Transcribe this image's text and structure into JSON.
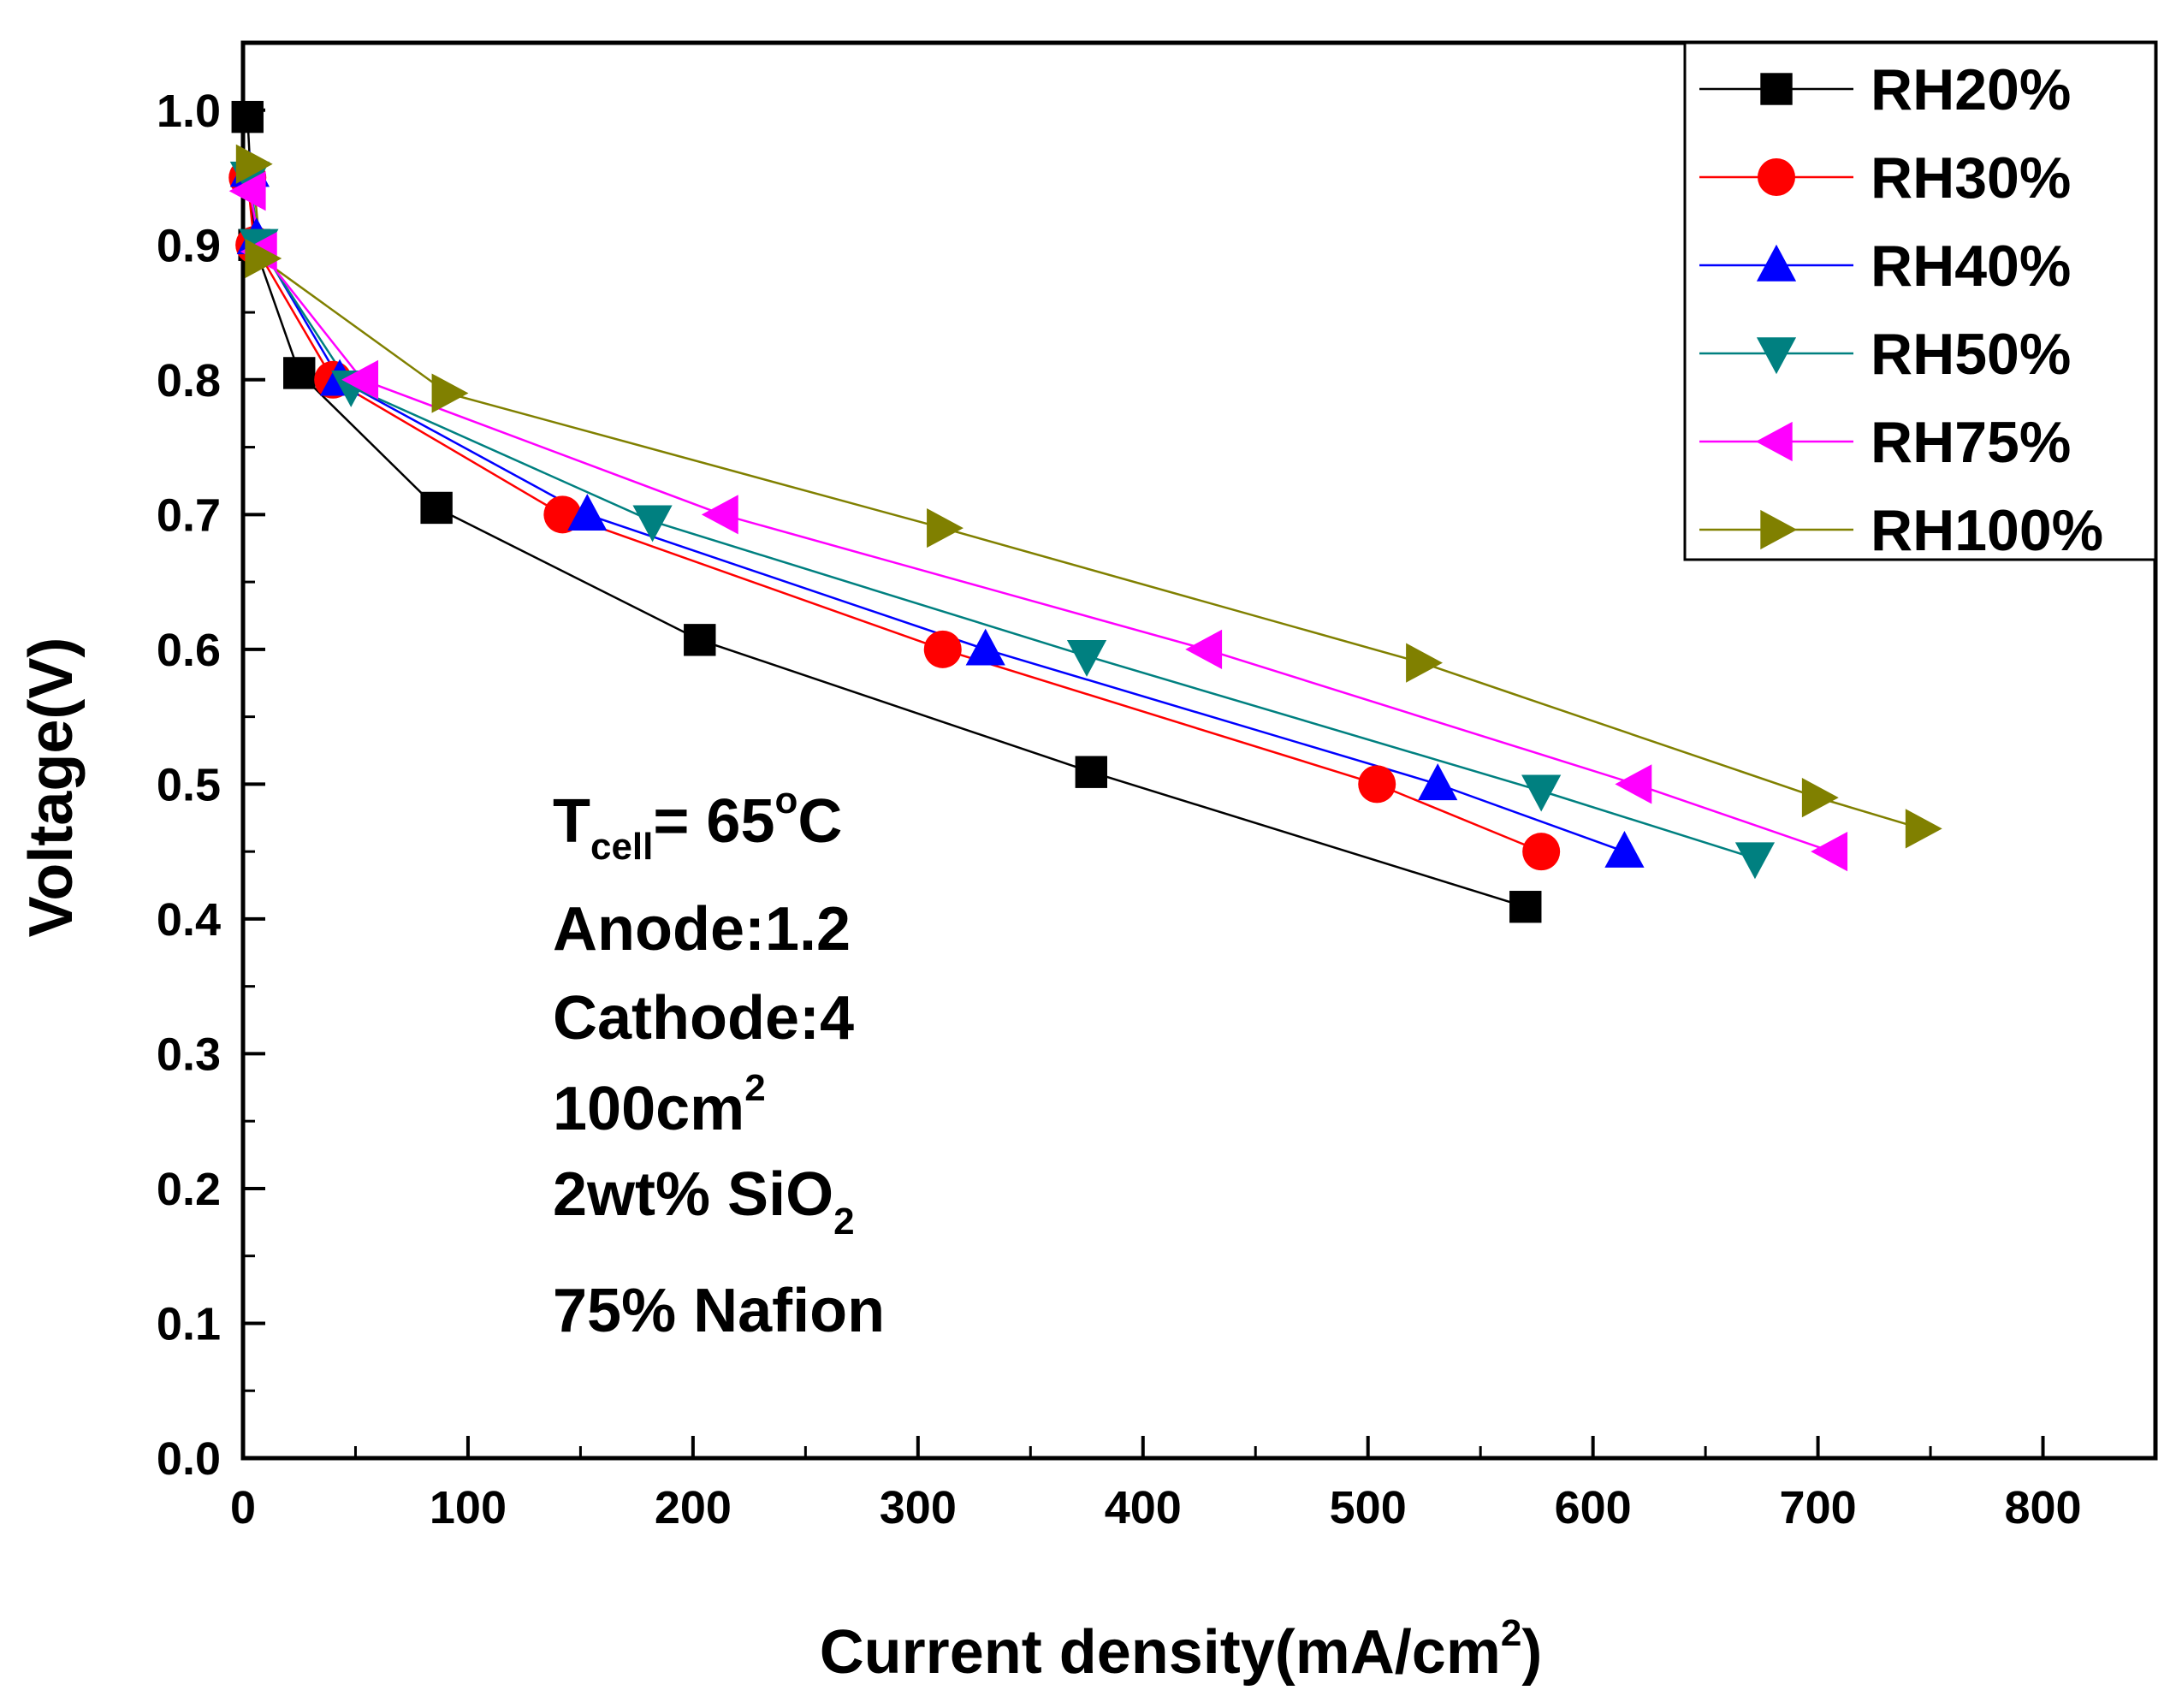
{
  "chart_data": {
    "type": "line",
    "title": "",
    "xlabel": "Current density(mA/cm",
    "xlabel_sup": "2",
    "xlabel_close": ")",
    "ylabel": "Voltage(V)",
    "xlim": [
      0,
      850
    ],
    "ylim": [
      0,
      1.05
    ],
    "x_ticks": [
      0,
      100,
      200,
      300,
      400,
      500,
      600,
      700,
      800
    ],
    "x_tick_labels": [
      "0",
      "100",
      "200",
      "300",
      "400",
      "500",
      "600",
      "700",
      "800"
    ],
    "y_ticks": [
      0.0,
      0.1,
      0.2,
      0.3,
      0.4,
      0.5,
      0.6,
      0.7,
      0.8,
      0.9,
      1.0
    ],
    "y_tick_labels": [
      "0.0",
      "0.1",
      "0.2",
      "0.3",
      "0.4",
      "0.5",
      "0.6",
      "0.7",
      "0.8",
      "0.9",
      "1.0"
    ],
    "grid": false,
    "legend_position": "top-right",
    "series": [
      {
        "name": "RH20%",
        "color": "#000000",
        "marker": "square",
        "x": [
          2,
          5,
          25,
          86,
          203,
          377,
          570
        ],
        "y": [
          0.995,
          0.9,
          0.805,
          0.705,
          0.607,
          0.509,
          0.409
        ]
      },
      {
        "name": "RH30%",
        "color": "#ff0000",
        "marker": "circle",
        "x": [
          2,
          5,
          40,
          142,
          311,
          504,
          577
        ],
        "y": [
          0.95,
          0.9,
          0.8,
          0.7,
          0.6,
          0.5,
          0.45
        ]
      },
      {
        "name": "RH40%",
        "color": "#0000ff",
        "marker": "triangle-up",
        "x": [
          3,
          6,
          43,
          153,
          330,
          531,
          614
        ],
        "y": [
          0.955,
          0.905,
          0.8,
          0.7,
          0.6,
          0.5,
          0.45
        ]
      },
      {
        "name": "RH50%",
        "color": "#008080",
        "marker": "triangle-down",
        "x": [
          3,
          7,
          48,
          182,
          375,
          577,
          672
        ],
        "y": [
          0.95,
          0.9,
          0.795,
          0.695,
          0.595,
          0.495,
          0.445
        ]
      },
      {
        "name": "RH75%",
        "color": "#ff00ff",
        "marker": "triangle-left",
        "x": [
          3,
          8,
          53,
          213,
          428,
          619,
          706
        ],
        "y": [
          0.94,
          0.895,
          0.8,
          0.7,
          0.6,
          0.5,
          0.45
        ]
      },
      {
        "name": "RH100%",
        "color": "#808000",
        "marker": "triangle-right",
        "x": [
          4,
          8,
          91,
          311,
          524,
          700,
          746
        ],
        "y": [
          0.96,
          0.89,
          0.79,
          0.69,
          0.59,
          0.49,
          0.467
        ]
      }
    ],
    "annotations": {
      "tcell_main": "T",
      "tcell_sub": "cell",
      "tcell_eq": "= 65",
      "tcell_deg": "o",
      "tcell_unit": "C",
      "anode": "Anode:1.2",
      "cathode": "Cathode:4",
      "area": "100cm",
      "area_sup": "2",
      "sio2": "2wt% SiO",
      "sio2_sub": "2",
      "nafion": "75% Nafion"
    }
  }
}
